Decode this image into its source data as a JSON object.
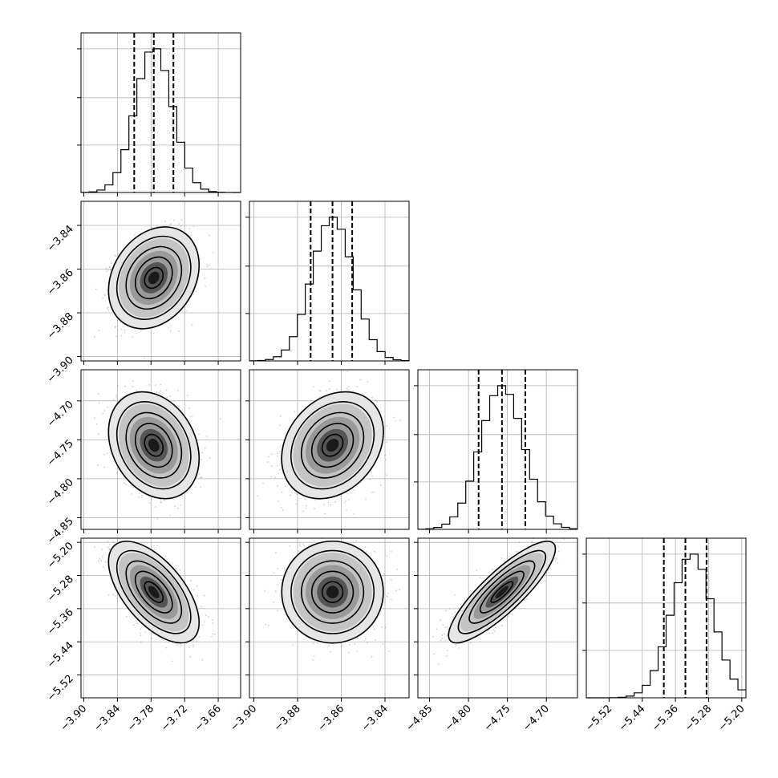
{
  "chart_data": {
    "type": "corner",
    "grid": true,
    "params": [
      {
        "mean": -3.775,
        "std": 0.033,
        "range": [
          -3.905,
          -3.62
        ],
        "ticks": [
          -3.9,
          -3.84,
          -3.78,
          -3.72,
          -3.66
        ],
        "tick_labels": [
          "−3.90",
          "−3.84",
          "−3.78",
          "−3.72",
          "−3.66"
        ],
        "quantiles": [
          -3.81,
          -3.775,
          -3.74
        ]
      },
      {
        "mean": -3.864,
        "std": 0.0095,
        "range": [
          -3.902,
          -3.829
        ],
        "ticks": [
          -3.9,
          -3.88,
          -3.86,
          -3.84
        ],
        "tick_labels": [
          "−3.90",
          "−3.88",
          "−3.86",
          "−3.84"
        ],
        "quantiles": [
          -3.874,
          -3.864,
          -3.855
        ]
      },
      {
        "mean": -4.757,
        "std": 0.028,
        "range": [
          -4.865,
          -4.66
        ],
        "ticks": [
          -4.85,
          -4.8,
          -4.75,
          -4.7
        ],
        "tick_labels": [
          "−4.85",
          "−4.80",
          "−4.75",
          "−4.70"
        ],
        "quantiles": [
          -4.787,
          -4.757,
          -4.727
        ]
      },
      {
        "mean": -5.32,
        "std": 0.05,
        "range": [
          -5.575,
          -5.19
        ],
        "ticks": [
          -5.52,
          -5.44,
          -5.36,
          -5.28,
          -5.2
        ],
        "tick_labels": [
          "−5.52",
          "−5.44",
          "−5.36",
          "−5.28",
          "−5.20"
        ],
        "quantiles": [
          -5.388,
          -5.336,
          -5.285
        ]
      }
    ],
    "correlations": [
      [
        1,
        0.25,
        -0.25,
        -0.6
      ],
      [
        0.25,
        1,
        0.25,
        0
      ],
      [
        -0.25,
        0.25,
        1,
        0.85
      ],
      [
        -0.6,
        0,
        0.85,
        1
      ]
    ]
  }
}
